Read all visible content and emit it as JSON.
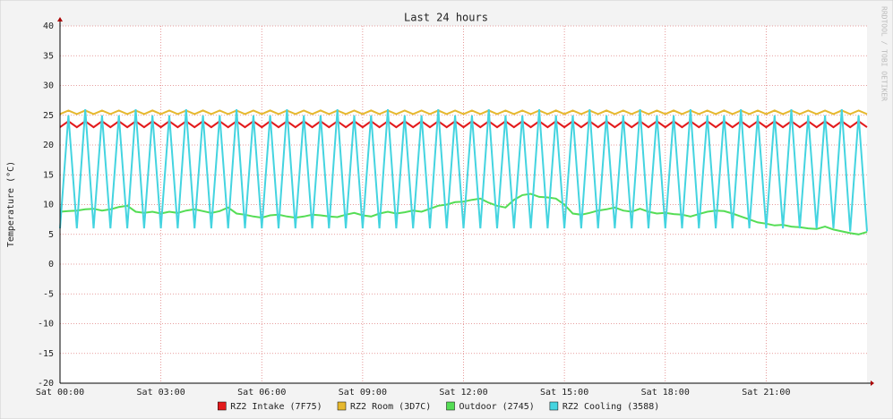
{
  "chart_data": {
    "type": "line",
    "title": "Last 24 hours",
    "y_label": "Temperature (°C)",
    "watermark": "RRDTOOL / TOBI OETIKER",
    "xlim": [
      0,
      24
    ],
    "xticks": [
      {
        "value": 0,
        "label": "Sat 00:00"
      },
      {
        "value": 3,
        "label": "Sat 03:00"
      },
      {
        "value": 6,
        "label": "Sat 06:00"
      },
      {
        "value": 9,
        "label": "Sat 09:00"
      },
      {
        "value": 12,
        "label": "Sat 12:00"
      },
      {
        "value": 15,
        "label": "Sat 15:00"
      },
      {
        "value": 18,
        "label": "Sat 18:00"
      },
      {
        "value": 21,
        "label": "Sat 21:00"
      }
    ],
    "ylim": [
      -20,
      40
    ],
    "yticks": [
      -20,
      -15,
      -10,
      -5,
      0,
      5,
      10,
      15,
      20,
      25,
      30,
      35,
      40
    ],
    "grid": true,
    "legend": "bottom",
    "x": [
      0,
      0.25,
      0.5,
      0.75,
      1,
      1.25,
      1.5,
      1.75,
      2,
      2.25,
      2.5,
      2.75,
      3,
      3.25,
      3.5,
      3.75,
      4,
      4.25,
      4.5,
      4.75,
      5,
      5.25,
      5.5,
      5.75,
      6,
      6.25,
      6.5,
      6.75,
      7,
      7.25,
      7.5,
      7.75,
      8,
      8.25,
      8.5,
      8.75,
      9,
      9.25,
      9.5,
      9.75,
      10,
      10.25,
      10.5,
      10.75,
      11,
      11.25,
      11.5,
      11.75,
      12,
      12.25,
      12.5,
      12.75,
      13,
      13.25,
      13.5,
      13.75,
      14,
      14.25,
      14.5,
      14.75,
      15,
      15.25,
      15.5,
      15.75,
      16,
      16.25,
      16.5,
      16.75,
      17,
      17.25,
      17.5,
      17.75,
      18,
      18.25,
      18.5,
      18.75,
      19,
      19.25,
      19.5,
      19.75,
      20,
      20.25,
      20.5,
      20.75,
      21,
      21.25,
      21.5,
      21.75,
      22,
      22.25,
      22.5,
      22.75,
      23,
      23.25,
      23.5,
      23.75,
      24
    ],
    "series": [
      {
        "name": "RZ2 Intake (7F75)",
        "color": "#e31a1c",
        "values": [
          23,
          24,
          23,
          24,
          23,
          24,
          23,
          24,
          23,
          24,
          23,
          24,
          23,
          24,
          23,
          24,
          23,
          24,
          23,
          24,
          23,
          24,
          23,
          24,
          23,
          24,
          23,
          24,
          23,
          24,
          23,
          24,
          23,
          24,
          23,
          24,
          23,
          24,
          23,
          24,
          23,
          24,
          23,
          24,
          23,
          24,
          23,
          24,
          23,
          24,
          23,
          24,
          23,
          24,
          23,
          24,
          23,
          24,
          23,
          24,
          23,
          24,
          23,
          24,
          23,
          24,
          23,
          24,
          23,
          24,
          23,
          24,
          23,
          24,
          23,
          24,
          23,
          24,
          23,
          24,
          23,
          24,
          23,
          24,
          23,
          24,
          23,
          24,
          23,
          24,
          23,
          24,
          23,
          24,
          23,
          24,
          23
        ]
      },
      {
        "name": "RZ2 Room (3D7C)",
        "color": "#e6b82e",
        "values": [
          25.2,
          25.8,
          25.2,
          25.8,
          25.2,
          25.8,
          25.2,
          25.8,
          25.2,
          25.8,
          25.2,
          25.8,
          25.2,
          25.8,
          25.2,
          25.8,
          25.2,
          25.8,
          25.2,
          25.8,
          25.2,
          25.8,
          25.2,
          25.8,
          25.2,
          25.8,
          25.2,
          25.8,
          25.2,
          25.8,
          25.2,
          25.8,
          25.2,
          25.8,
          25.2,
          25.8,
          25.2,
          25.8,
          25.2,
          25.8,
          25.2,
          25.8,
          25.2,
          25.8,
          25.2,
          25.8,
          25.2,
          25.8,
          25.2,
          25.8,
          25.2,
          25.8,
          25.2,
          25.8,
          25.2,
          25.8,
          25.2,
          25.8,
          25.2,
          25.8,
          25.2,
          25.8,
          25.2,
          25.8,
          25.2,
          25.8,
          25.2,
          25.8,
          25.2,
          25.8,
          25.2,
          25.8,
          25.2,
          25.8,
          25.2,
          25.8,
          25.2,
          25.8,
          25.2,
          25.8,
          25.2,
          25.8,
          25.2,
          25.8,
          25.2,
          25.8,
          25.2,
          25.8,
          25.2,
          25.8,
          25.2,
          25.8,
          25.2,
          25.8,
          25.2,
          25.8,
          25.2
        ]
      },
      {
        "name": "Outdoor (2745)",
        "color": "#55dd55",
        "values": [
          8.8,
          8.9,
          9.0,
          9.2,
          9.3,
          9.0,
          9.2,
          9.6,
          9.8,
          8.8,
          8.6,
          8.8,
          8.5,
          8.8,
          8.6,
          9.0,
          9.2,
          8.9,
          8.6,
          8.9,
          9.5,
          8.5,
          8.3,
          8.0,
          7.8,
          8.2,
          8.3,
          8.0,
          7.8,
          8.0,
          8.3,
          8.2,
          8.0,
          7.9,
          8.3,
          8.6,
          8.2,
          8.0,
          8.5,
          8.8,
          8.5,
          8.7,
          9.0,
          8.8,
          9.3,
          9.8,
          10.0,
          10.4,
          10.5,
          10.8,
          11.0,
          10.3,
          9.8,
          9.5,
          10.8,
          11.6,
          11.8,
          11.3,
          11.2,
          11.0,
          10.0,
          8.5,
          8.3,
          8.6,
          9.0,
          9.2,
          9.5,
          9.0,
          8.8,
          9.3,
          8.8,
          8.5,
          8.6,
          8.4,
          8.3,
          8.0,
          8.4,
          8.8,
          9.0,
          8.9,
          8.5,
          8.0,
          7.5,
          7.0,
          6.8,
          6.5,
          6.6,
          6.3,
          6.2,
          6.0,
          5.9,
          6.3,
          5.8,
          5.5,
          5.2,
          5.0,
          5.4
        ]
      },
      {
        "name": "RZ2 Cooling (3588)",
        "color": "#44d4e0",
        "values": [
          6,
          25,
          6,
          26,
          6,
          25,
          6,
          25,
          6,
          26,
          6,
          25,
          6,
          25,
          6,
          26,
          6,
          25,
          6,
          25,
          6,
          26,
          6,
          25,
          6,
          25,
          6,
          26,
          6,
          25,
          6,
          25,
          6,
          26,
          6,
          25,
          6,
          25,
          6,
          26,
          6,
          25,
          6,
          25,
          6,
          26,
          6,
          25,
          6,
          25,
          6,
          26,
          6,
          25,
          6,
          25,
          6,
          26,
          6,
          25,
          6,
          25,
          6,
          26,
          6,
          25,
          6,
          25,
          6,
          26,
          6,
          25,
          6,
          25,
          6,
          26,
          6,
          25,
          6,
          25,
          6,
          26,
          6,
          25,
          6,
          25,
          6,
          26,
          6,
          25,
          6,
          25,
          6,
          26,
          5.5,
          25,
          5.5
        ]
      }
    ]
  }
}
